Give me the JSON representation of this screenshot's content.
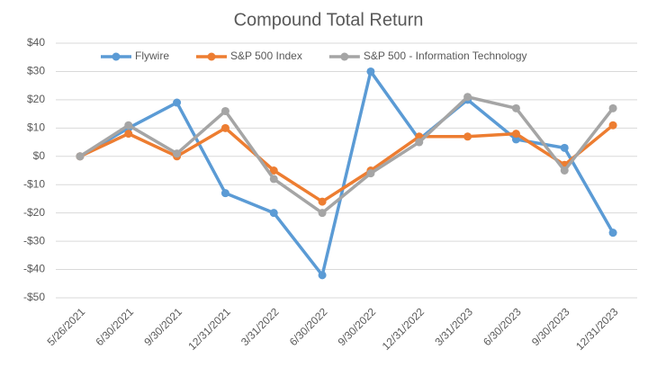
{
  "chart_data": {
    "type": "line",
    "title": "Compound Total Return",
    "categories": [
      "5/26/2021",
      "6/30/2021",
      "9/30/2021",
      "12/31/2021",
      "3/31/2022",
      "6/30/2022",
      "9/30/2022",
      "12/31/2022",
      "3/31/2023",
      "6/30/2023",
      "9/30/2023",
      "12/31/2023"
    ],
    "series": [
      {
        "name": "Flywire",
        "color": "#5b9bd5",
        "values": [
          0,
          10,
          19,
          -13,
          -20,
          -42,
          30,
          6,
          20,
          6,
          3,
          -27
        ]
      },
      {
        "name": "S&P 500 Index",
        "color": "#ed7d31",
        "values": [
          0,
          8,
          0,
          10,
          -5,
          -16,
          -5,
          7,
          7,
          8,
          -3,
          11
        ]
      },
      {
        "name": "S&P 500 - Information Technology",
        "color": "#a5a5a5",
        "values": [
          0,
          11,
          1,
          16,
          -8,
          -20,
          -6,
          5,
          21,
          17,
          -5,
          17
        ]
      }
    ],
    "ylim": [
      -50,
      40
    ],
    "yticks": [
      {
        "value": 40,
        "label": "$40"
      },
      {
        "value": 30,
        "label": "$30"
      },
      {
        "value": 20,
        "label": "$20"
      },
      {
        "value": 10,
        "label": "$10"
      },
      {
        "value": 0,
        "label": "$0"
      },
      {
        "value": -10,
        "label": "-$10"
      },
      {
        "value": -20,
        "label": "-$20"
      },
      {
        "value": -30,
        "label": "-$30"
      },
      {
        "value": -40,
        "label": "-$40"
      },
      {
        "value": -50,
        "label": "-$50"
      }
    ],
    "grid": true,
    "legend": "top"
  }
}
